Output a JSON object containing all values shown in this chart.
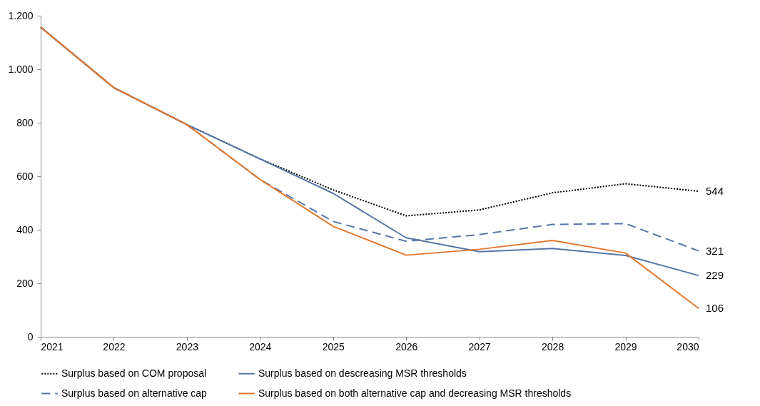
{
  "chart_data": {
    "type": "line",
    "x": [
      2021,
      2022,
      2023,
      2024,
      2025,
      2026,
      2027,
      2028,
      2029,
      2030
    ],
    "xlim": [
      2021,
      2030
    ],
    "xticks": [
      2021,
      2022,
      2023,
      2024,
      2025,
      2026,
      2027,
      2028,
      2029,
      2030
    ],
    "ylim": [
      0,
      1200
    ],
    "yticks": [
      0,
      200,
      400,
      600,
      800,
      {
        "value": 1000,
        "label": "1.000"
      },
      {
        "value": 1200,
        "label": "1.200"
      }
    ],
    "grid": false,
    "legend": "bottom",
    "marker": "none",
    "series": [
      {
        "name": "Surplus based on COM proposal",
        "color": "#000000",
        "line_style": "dotted",
        "values": [
          1157,
          931,
          793,
          665,
          549,
          452,
          474,
          538,
          572,
          544
        ],
        "value_labels": [
          null,
          null,
          null,
          null,
          null,
          null,
          null,
          null,
          null,
          "544"
        ]
      },
      {
        "name": "Surplus based on descreasing MSR thresholds",
        "color": "#5875a8",
        "line_style": "solid",
        "values": [
          1157,
          931,
          793,
          665,
          536,
          370,
          318,
          330,
          304,
          229
        ],
        "value_labels": [
          null,
          null,
          null,
          null,
          null,
          null,
          null,
          null,
          null,
          "229"
        ]
      },
      {
        "name": "Surplus based on alternative cap",
        "color": "#5875a8",
        "line_style": "dashed",
        "values": [
          1157,
          931,
          793,
          588,
          431,
          357,
          382,
          420,
          423,
          321
        ],
        "value_labels": [
          null,
          null,
          null,
          null,
          null,
          null,
          null,
          null,
          null,
          "321"
        ]
      },
      {
        "name": "Surplus based on both alternative cap and decreasing MSR thresholds",
        "color": "#e2782f",
        "line_style": "solid",
        "values": [
          1157,
          931,
          793,
          588,
          413,
          305,
          327,
          360,
          313,
          106
        ],
        "value_labels": [
          null,
          null,
          null,
          null,
          null,
          null,
          null,
          null,
          null,
          "106"
        ]
      }
    ]
  }
}
